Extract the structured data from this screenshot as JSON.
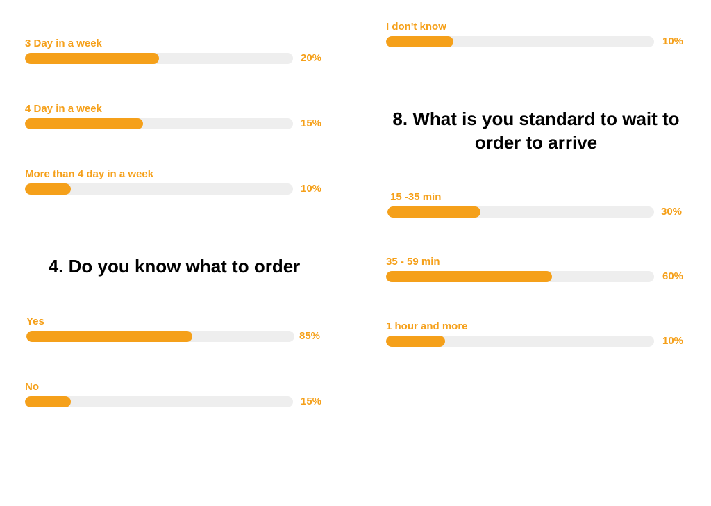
{
  "colors": {
    "accent": "#f5a01a",
    "track": "#eeeeee",
    "heading": "#000000"
  },
  "left_top": {
    "items": [
      {
        "label": "3 Day in a week",
        "value": 20,
        "fill_fraction": 0.5,
        "percent_text": "20%"
      },
      {
        "label": "4 Day in a week",
        "value": 15,
        "fill_fraction": 0.44,
        "percent_text": "15%"
      },
      {
        "label": "More than 4 day in a week",
        "value": 10,
        "fill_fraction": 0.17,
        "percent_text": "10%"
      }
    ]
  },
  "question4": {
    "title": "4. Do you know what to order",
    "items": [
      {
        "label": "Yes",
        "value": 85,
        "fill_fraction": 0.62,
        "percent_text": "85%"
      },
      {
        "label": "No",
        "value": 15,
        "fill_fraction": 0.17,
        "percent_text": "15%"
      }
    ]
  },
  "right_top": {
    "items": [
      {
        "label": "I don't know",
        "value": 10,
        "fill_fraction": 0.25,
        "percent_text": "10%"
      }
    ]
  },
  "question8": {
    "title_line1": "8. What is you standard to wait to",
    "title_line2": "order to arrive",
    "items": [
      {
        "label": "15 -35 min",
        "value": 30,
        "fill_fraction": 0.35,
        "percent_text": "30%"
      },
      {
        "label": "35 - 59 min",
        "value": 60,
        "fill_fraction": 0.62,
        "percent_text": "60%"
      },
      {
        "label": "1 hour and more",
        "value": 10,
        "fill_fraction": 0.22,
        "percent_text": "10%"
      }
    ]
  },
  "chart_data": [
    {
      "type": "bar",
      "categories": [
        "3 Day in a week",
        "4 Day in a week",
        "More than 4 day in a week"
      ],
      "values": [
        20,
        15,
        10
      ],
      "unit": "%"
    },
    {
      "type": "bar",
      "title": "4. Do you know what to order",
      "categories": [
        "Yes",
        "No"
      ],
      "values": [
        85,
        15
      ],
      "unit": "%"
    },
    {
      "type": "bar",
      "categories": [
        "I don't know"
      ],
      "values": [
        10
      ],
      "unit": "%"
    },
    {
      "type": "bar",
      "title": "8. What is you standard to wait to order to arrive",
      "categories": [
        "15 -35 min",
        "35 - 59 min",
        "1 hour and more"
      ],
      "values": [
        30,
        60,
        10
      ],
      "unit": "%"
    }
  ]
}
